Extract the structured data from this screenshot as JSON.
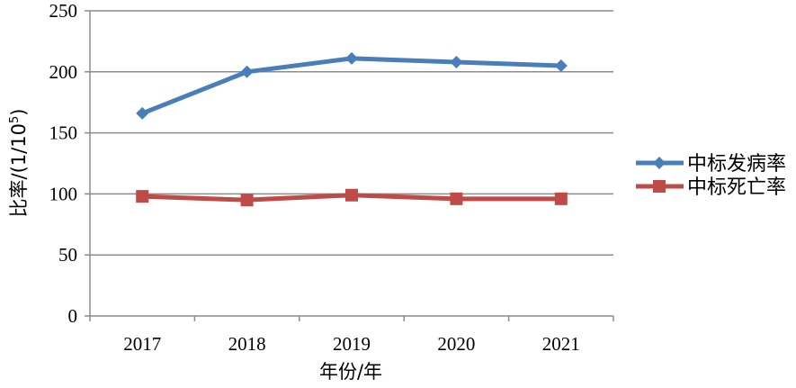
{
  "chart_data": {
    "type": "line",
    "categories": [
      "2017",
      "2018",
      "2019",
      "2020",
      "2021"
    ],
    "series": [
      {
        "name": "中标发病率",
        "values": [
          166,
          200,
          211,
          208,
          205
        ],
        "color": "#4a7ebb",
        "marker": "diamond"
      },
      {
        "name": "中标死亡率",
        "values": [
          98,
          95,
          99,
          96,
          96
        ],
        "color": "#be4b48",
        "marker": "square"
      }
    ],
    "xlabel": "年份/年",
    "ylabel_main": "比率/(1/10",
    "ylabel_sup": "5",
    "ylabel_close": ")",
    "ylim": [
      0,
      250
    ],
    "yticks": [
      0,
      50,
      100,
      150,
      200,
      250
    ],
    "grid": true,
    "legend_position": "right"
  }
}
